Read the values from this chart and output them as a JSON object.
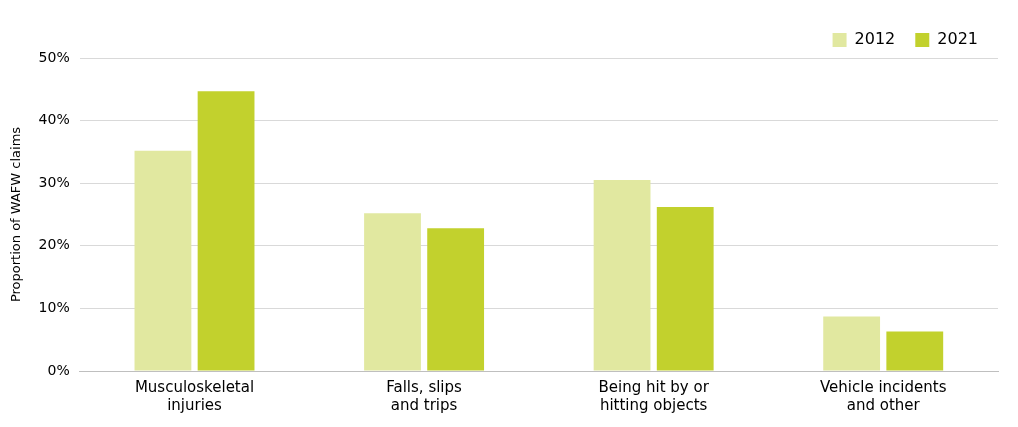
{
  "chart_data": {
    "type": "bar",
    "ylabel": "Proportion of WAFW claims",
    "categories": [
      "Musculoskeletal injuries",
      "Falls, slips and trips",
      "Being hit by or hitting objects",
      "Vehicle incidents and other"
    ],
    "series": [
      {
        "name": "2012",
        "color": "#e1e8a0",
        "values": [
          35.2,
          25.2,
          30.5,
          8.7
        ]
      },
      {
        "name": "2021",
        "color": "#c2d12d",
        "values": [
          44.7,
          22.8,
          26.2,
          6.3
        ]
      }
    ],
    "ylim": [
      0,
      50
    ],
    "yticks": [
      {
        "value": 0,
        "label": "0%"
      },
      {
        "value": 10,
        "label": "10%"
      },
      {
        "value": 20,
        "label": "20%"
      },
      {
        "value": 30,
        "label": "30%"
      },
      {
        "value": 40,
        "label": "40%"
      },
      {
        "value": 50,
        "label": "50%"
      }
    ],
    "grid": "y",
    "legend": "top right"
  }
}
